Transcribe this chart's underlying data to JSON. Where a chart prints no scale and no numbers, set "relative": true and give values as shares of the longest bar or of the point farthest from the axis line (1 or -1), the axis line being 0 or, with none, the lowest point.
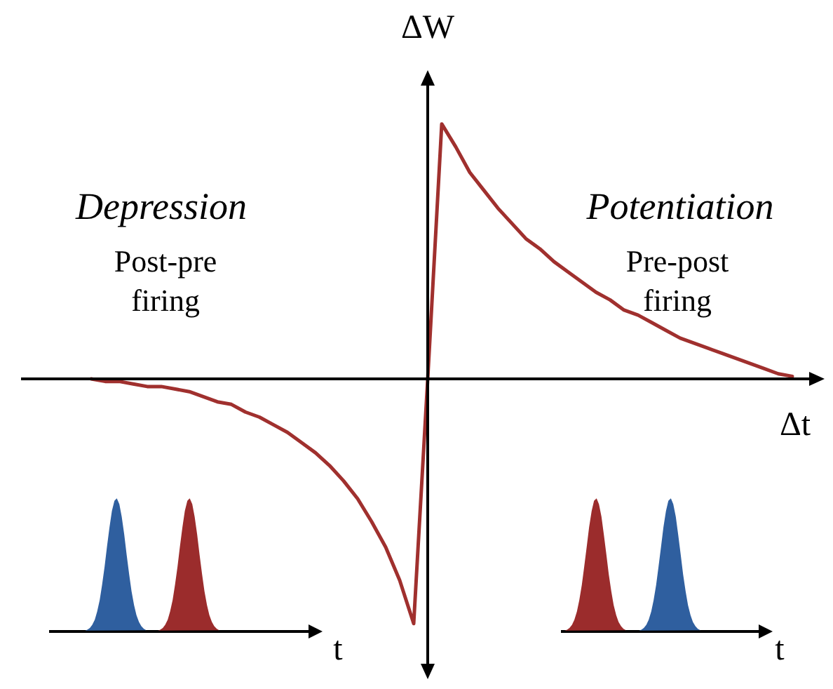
{
  "chart_data": {
    "type": "line",
    "relative": true,
    "xlabel": "Δt",
    "ylabel": "ΔW",
    "marker": "none",
    "grid": false,
    "categories": [
      null,
      null,
      null,
      null,
      null,
      null,
      null,
      null,
      null,
      null,
      null,
      null,
      null,
      null,
      null,
      null,
      null,
      null,
      null,
      null,
      null,
      null,
      null,
      null,
      null,
      null,
      null,
      null,
      null,
      null,
      null,
      null,
      null,
      null,
      null,
      null,
      null,
      null,
      null,
      null,
      null,
      null,
      null,
      null,
      null,
      null,
      null,
      null,
      null,
      null,
      null
    ],
    "series": [
      {
        "color": "#a0302e",
        "values": [
          0,
          -0.01,
          -0.01,
          -0.02,
          -0.03,
          -0.03,
          -0.04,
          -0.05,
          -0.07,
          -0.09,
          -0.1,
          -0.13,
          -0.15,
          -0.18,
          -0.21,
          -0.25,
          -0.29,
          -0.34,
          -0.4,
          -0.47,
          -0.56,
          -0.66,
          -0.79,
          -0.96,
          0,
          1,
          0.91,
          0.81,
          0.74,
          0.67,
          0.61,
          0.55,
          0.51,
          0.46,
          0.42,
          0.38,
          0.34,
          0.31,
          0.27,
          0.25,
          0.22,
          0.19,
          0.16,
          0.14,
          0.12,
          0.1,
          0.08,
          0.06,
          0.04,
          0.02,
          0.01
        ]
      }
    ],
    "annotations": [
      "Depression",
      "Potentiation",
      "Post-pre\nfiring",
      "Pre-post\nfiring",
      "t",
      "t"
    ]
  }
}
